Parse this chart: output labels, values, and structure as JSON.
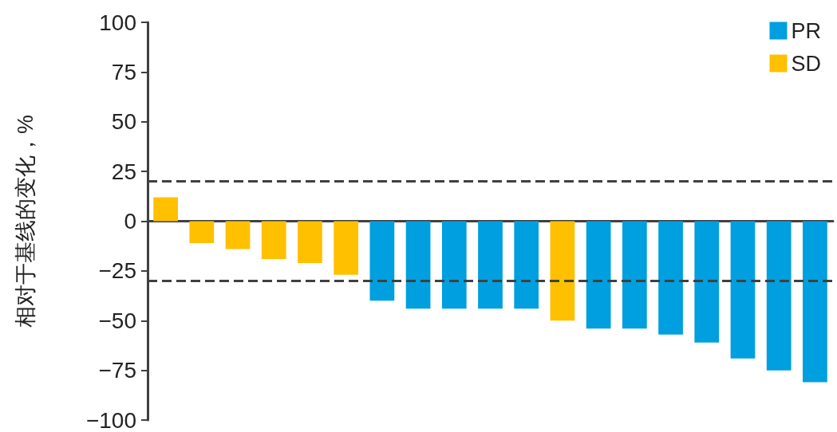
{
  "chart_data": {
    "type": "bar",
    "ylabel": "相对于基线的变化，%",
    "categories": [
      null,
      null,
      null,
      null,
      null,
      null,
      null,
      null,
      null,
      null,
      null,
      null,
      null,
      null,
      null,
      null,
      null,
      null,
      null
    ],
    "series": [
      {
        "name": "PR",
        "color": "#009fdf",
        "values": [
          null,
          null,
          null,
          null,
          null,
          null,
          -40,
          -44,
          -44,
          -44,
          -44,
          null,
          -54,
          -54,
          -57,
          -61,
          -69,
          -75,
          -81
        ]
      },
      {
        "name": "SD",
        "color": "#ffc000",
        "values": [
          12,
          -11,
          -14,
          -19,
          -21,
          -27,
          null,
          null,
          null,
          null,
          null,
          -50,
          null,
          null,
          null,
          null,
          null,
          null,
          null
        ]
      }
    ],
    "ylim": [
      -100,
      100
    ],
    "yticks": [
      -100,
      -75,
      -50,
      -25,
      0,
      25,
      50,
      75,
      100
    ],
    "ref_lines": [
      {
        "axis": "y",
        "value": 20,
        "line_style": "dashed",
        "color": "#404040"
      },
      {
        "axis": "y",
        "value": -30,
        "line_style": "dashed",
        "color": "#404040"
      }
    ],
    "legend": "top right"
  }
}
